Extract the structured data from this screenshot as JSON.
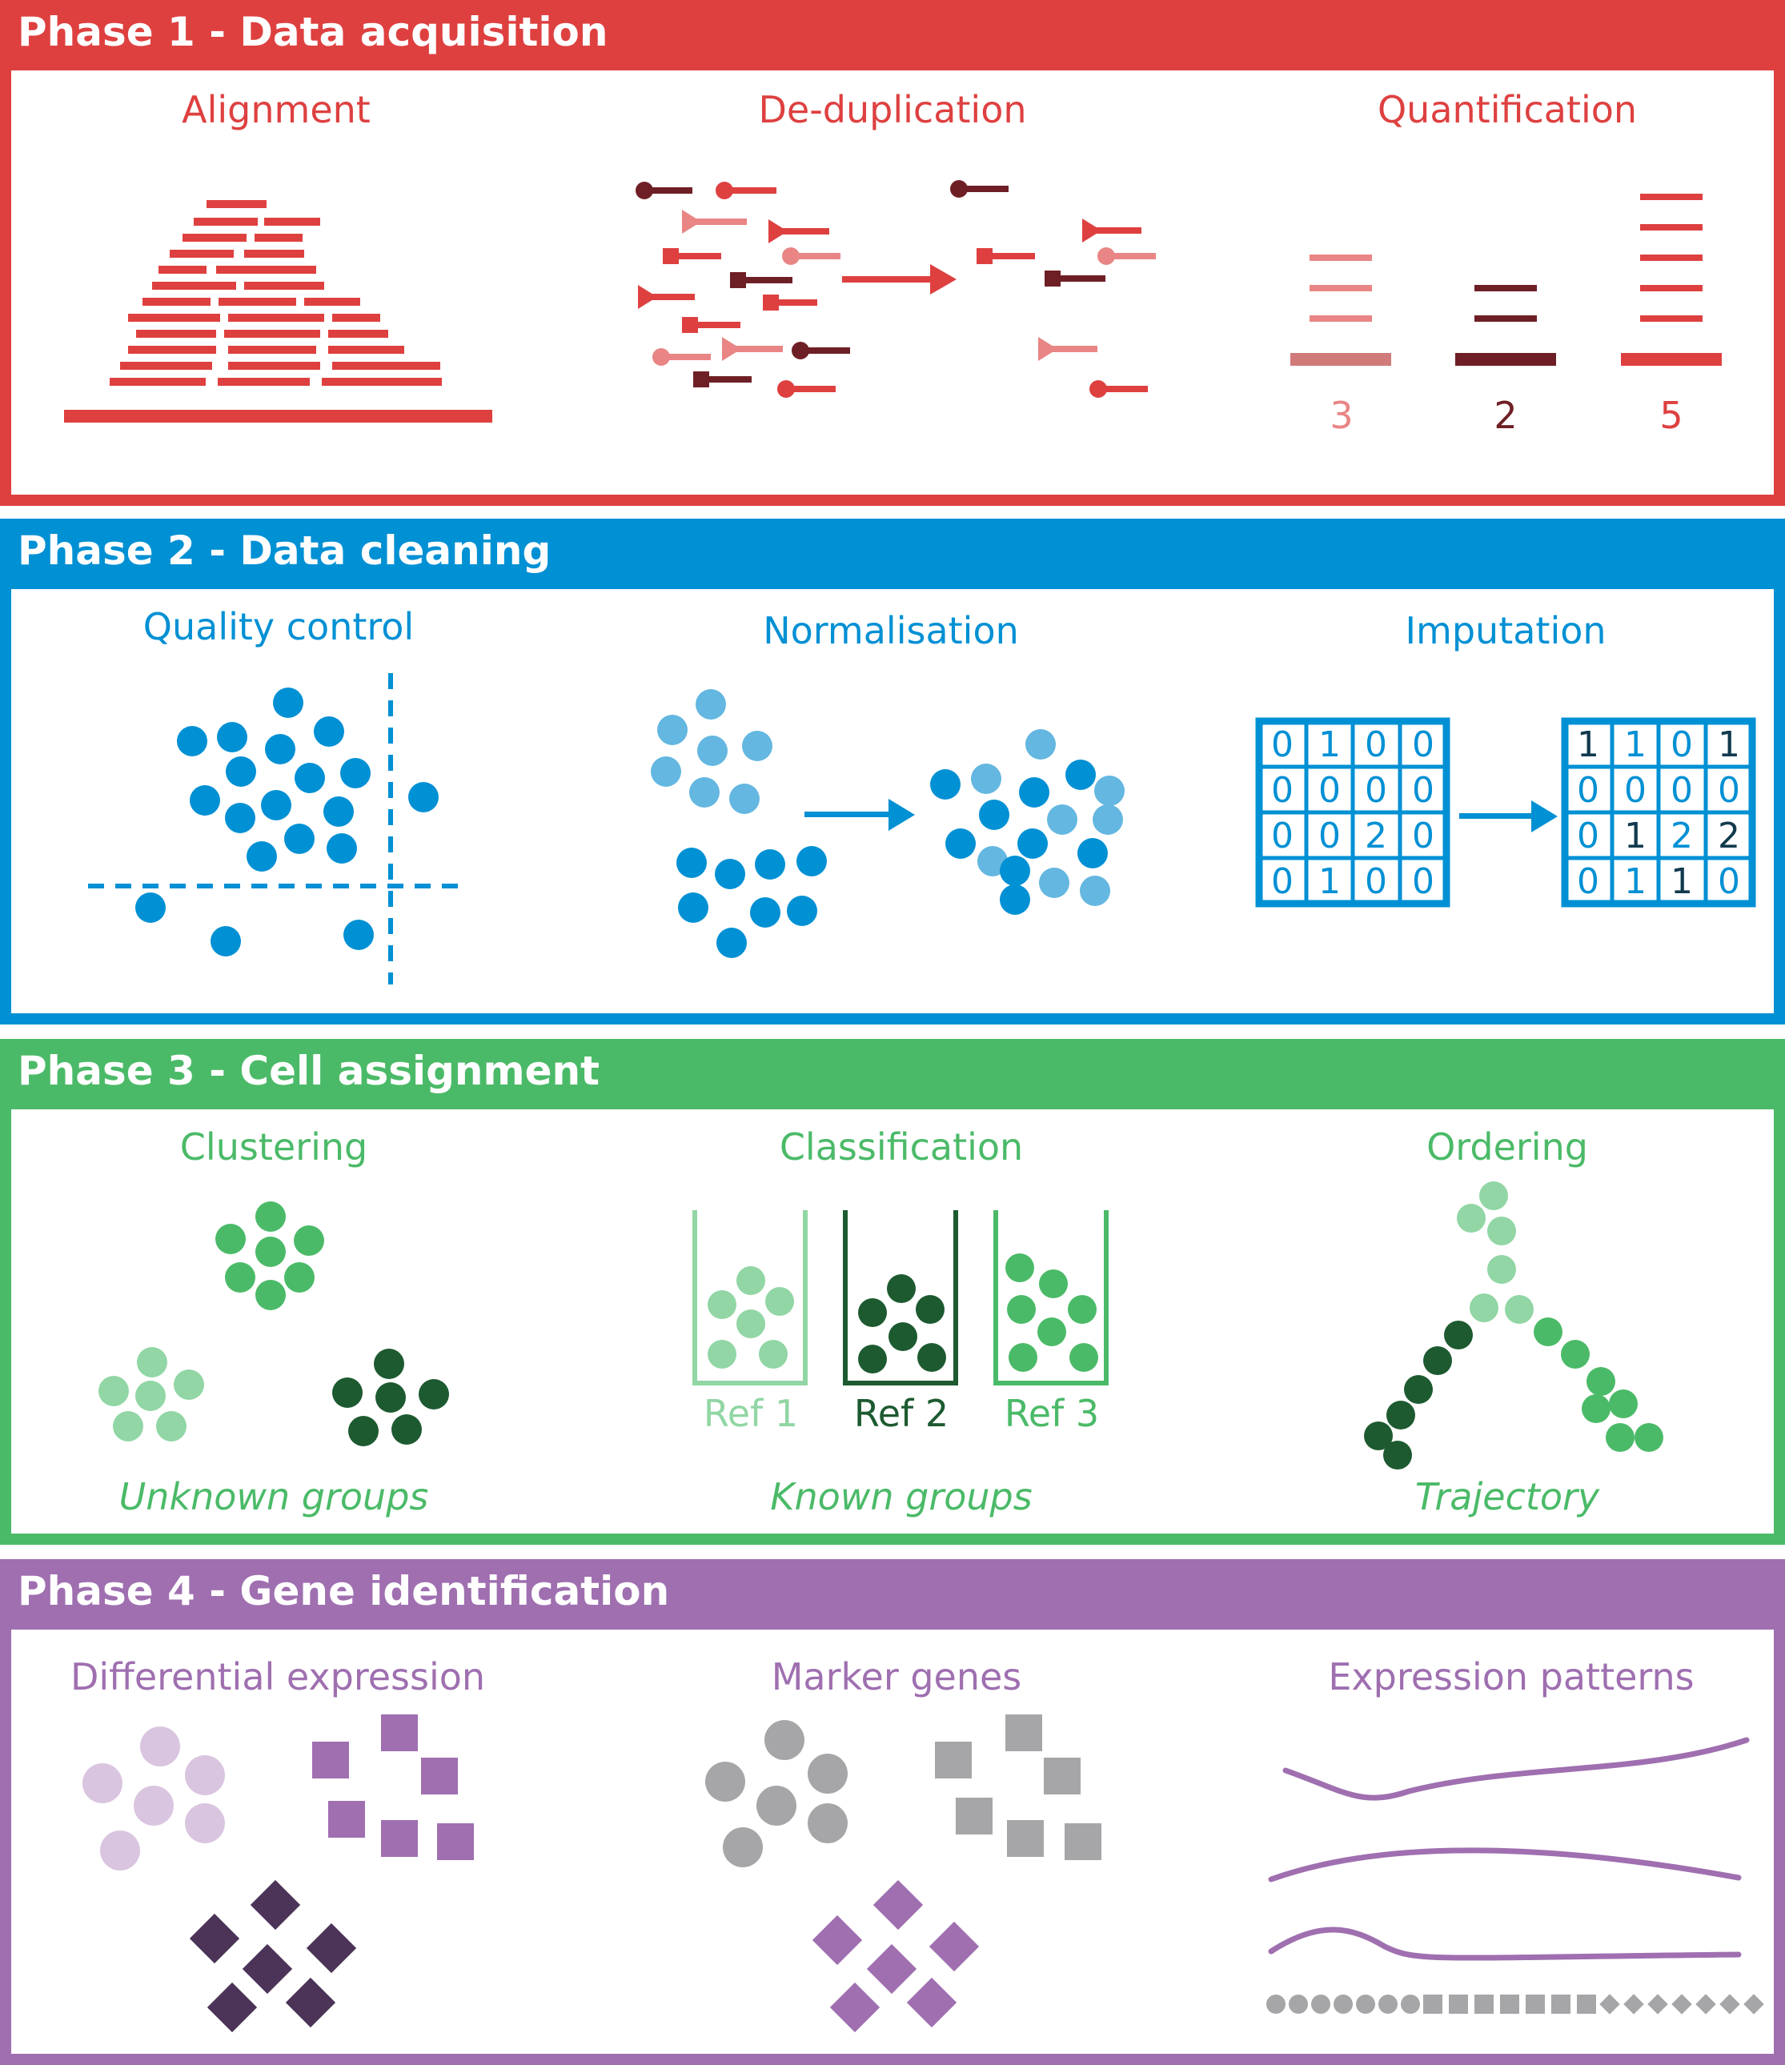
{
  "colors": {
    "red": "#de4040",
    "red_light": "#e98585",
    "red_mid": "#d07a7a",
    "red_dark": "#6e1f25",
    "blue": "#0090d4",
    "blue_light": "#63b7e0",
    "green": "#4bba68",
    "green_light": "#91d6a4",
    "green_dark": "#1d5a30",
    "purple": "#9f6fb0",
    "purple_light": "#dac5e0",
    "purple_dark": "#4c3358",
    "grey": "#a6a6a8"
  },
  "phases": [
    {
      "title": "Phase 1 - Data acquisition",
      "steps": [
        "Alignment",
        "De-duplication",
        "Quantification"
      ],
      "counts": [
        "3",
        "2",
        "5"
      ]
    },
    {
      "title": "Phase 2 - Data cleaning",
      "steps": [
        "Quality control",
        "Normalisation",
        "Imputation"
      ],
      "matrix_before": [
        [
          "0",
          "1",
          "0",
          "0"
        ],
        [
          "0",
          "0",
          "0",
          "0"
        ],
        [
          "0",
          "0",
          "2",
          "0"
        ],
        [
          "0",
          "1",
          "0",
          "0"
        ]
      ],
      "matrix_after": [
        [
          "1",
          "1",
          "0",
          "1"
        ],
        [
          "0",
          "0",
          "0",
          "0"
        ],
        [
          "0",
          "1",
          "2",
          "2"
        ],
        [
          "0",
          "1",
          "1",
          "0"
        ]
      ]
    },
    {
      "title": "Phase 3 - Cell assignment",
      "steps": [
        "Clustering",
        "Classification",
        "Ordering"
      ],
      "refs": [
        "Ref 1",
        "Ref 2",
        "Ref 3"
      ],
      "captions": [
        "Unknown groups",
        "Known groups",
        "Trajectory"
      ]
    },
    {
      "title": "Phase 4 - Gene identification",
      "steps": [
        "Differential expression",
        "Marker genes",
        "Expression patterns"
      ]
    }
  ]
}
